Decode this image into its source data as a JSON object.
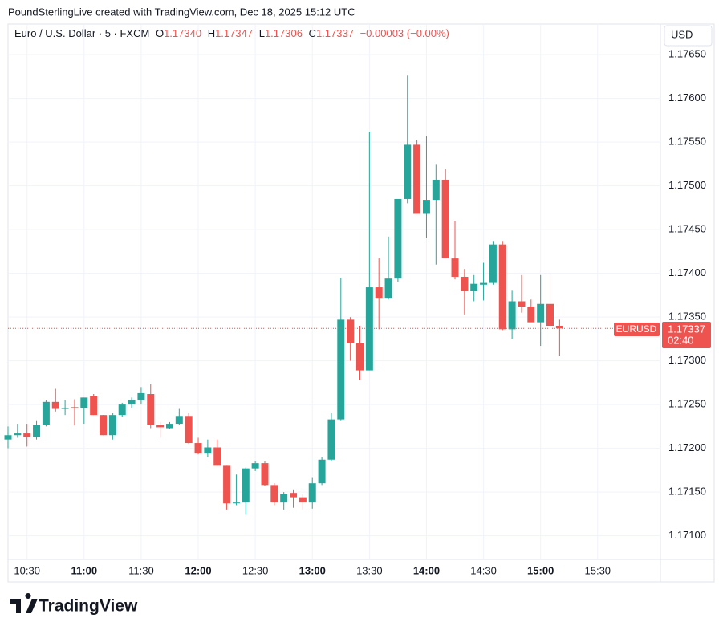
{
  "header": {
    "credit": "PoundSterlingLive created with TradingView.com, Dec 18, 2025 15:12 UTC"
  },
  "legend": {
    "symbol": "Euro / U.S. Dollar · 5 · FXCM",
    "o_label": "O",
    "o": "1.17340",
    "h_label": "H",
    "h": "1.17347",
    "l_label": "L",
    "l": "1.17306",
    "c_label": "C",
    "c": "1.17337",
    "change": "−0.00003 (−0.00%)"
  },
  "currency": "USD",
  "price_tag": {
    "symbol": "EURUSD",
    "price": "1.17337",
    "countdown": "02:40"
  },
  "logo": "TradingView",
  "chart_data": {
    "type": "candlestick",
    "up_color": "#26a69a",
    "down_color": "#ef5350",
    "grid": true,
    "x": [
      "10:20",
      "10:25",
      "10:30",
      "10:35",
      "10:40",
      "10:45",
      "10:50",
      "10:55",
      "11:00",
      "11:05",
      "11:10",
      "11:15",
      "11:20",
      "11:25",
      "11:30",
      "11:35",
      "11:40",
      "11:45",
      "11:50",
      "11:55",
      "12:00",
      "12:05",
      "12:10",
      "12:15",
      "12:20",
      "12:25",
      "12:30",
      "12:35",
      "12:40",
      "12:45",
      "12:50",
      "12:55",
      "13:00",
      "13:05",
      "13:10",
      "13:15",
      "13:20",
      "13:25",
      "13:30",
      "13:35",
      "13:40",
      "13:45",
      "13:50",
      "13:55",
      "14:00",
      "14:05",
      "14:10",
      "14:15",
      "14:20",
      "14:25",
      "14:30",
      "14:35",
      "14:40",
      "14:45",
      "14:50",
      "14:55",
      "15:00",
      "15:05",
      "15:10"
    ],
    "open": [
      1.1721,
      1.17215,
      1.17217,
      1.17213,
      1.17227,
      1.17253,
      1.17245,
      1.17247,
      1.17246,
      1.1726,
      1.17238,
      1.17215,
      1.17238,
      1.1725,
      1.17255,
      1.17262,
      1.17227,
      1.17223,
      1.17228,
      1.17237,
      1.17206,
      1.17194,
      1.17201,
      1.1718,
      1.17137,
      1.17138,
      1.17177,
      1.17183,
      1.17158,
      1.17138,
      1.17149,
      1.17144,
      1.17138,
      1.1716,
      1.17187,
      1.17233,
      1.17347,
      1.1732,
      1.17289,
      1.17384,
      1.17372,
      1.17394,
      1.17485,
      1.17547,
      1.17468,
      1.17484,
      1.17507,
      1.17417,
      1.17396,
      1.1738,
      1.17387,
      1.17389,
      1.17433,
      1.17336,
      1.17368,
      1.17362,
      1.17344,
      1.17365,
      1.1734
    ],
    "high": [
      1.17225,
      1.17228,
      1.17228,
      1.17232,
      1.17255,
      1.17268,
      1.17255,
      1.17256,
      1.17258,
      1.17262,
      1.17238,
      1.1724,
      1.17252,
      1.17258,
      1.1727,
      1.17273,
      1.1723,
      1.1723,
      1.17245,
      1.1724,
      1.17212,
      1.1721,
      1.1721,
      1.1718,
      1.1717,
      1.17178,
      1.17185,
      1.17185,
      1.1716,
      1.1715,
      1.17153,
      1.17148,
      1.17167,
      1.1719,
      1.1724,
      1.17395,
      1.1735,
      1.1734,
      1.17562,
      1.17417,
      1.17442,
      1.17485,
      1.17626,
      1.17552,
      1.17557,
      1.17525,
      1.17519,
      1.1746,
      1.17405,
      1.17398,
      1.17412,
      1.17437,
      1.17437,
      1.17381,
      1.17398,
      1.1737,
      1.17398,
      1.174,
      1.17347
    ],
    "low": [
      1.172,
      1.17212,
      1.17202,
      1.1721,
      1.17225,
      1.17242,
      1.17238,
      1.17226,
      1.17228,
      1.17238,
      1.17215,
      1.1721,
      1.17236,
      1.17246,
      1.1725,
      1.17223,
      1.17212,
      1.17222,
      1.17227,
      1.17205,
      1.17193,
      1.1719,
      1.1718,
      1.1713,
      1.17135,
      1.17124,
      1.17174,
      1.17157,
      1.17135,
      1.1713,
      1.17132,
      1.1713,
      1.17131,
      1.17158,
      1.17185,
      1.17232,
      1.173,
      1.17278,
      1.17289,
      1.17336,
      1.1737,
      1.1739,
      1.1748,
      1.17468,
      1.1744,
      1.1741,
      1.17417,
      1.17393,
      1.17353,
      1.17368,
      1.17369,
      1.17387,
      1.17335,
      1.17325,
      1.17355,
      1.17345,
      1.17317,
      1.17338,
      1.17306
    ],
    "close": [
      1.17215,
      1.17217,
      1.17213,
      1.17227,
      1.17253,
      1.17245,
      1.17246,
      1.17246,
      1.17258,
      1.17238,
      1.17215,
      1.17238,
      1.1725,
      1.17255,
      1.17263,
      1.17227,
      1.17224,
      1.17228,
      1.17237,
      1.17206,
      1.17194,
      1.17201,
      1.1718,
      1.17137,
      1.17138,
      1.17177,
      1.17183,
      1.17158,
      1.17138,
      1.17148,
      1.17144,
      1.17138,
      1.1716,
      1.17187,
      1.17233,
      1.17347,
      1.1732,
      1.17289,
      1.17384,
      1.17372,
      1.17394,
      1.17485,
      1.17547,
      1.17468,
      1.17484,
      1.17507,
      1.17417,
      1.17396,
      1.1738,
      1.17388,
      1.17389,
      1.17433,
      1.17336,
      1.17368,
      1.17362,
      1.17344,
      1.17365,
      1.1734,
      1.17337
    ],
    "last_price": 1.17337,
    "xlim": [
      "10:20",
      "16:03"
    ],
    "xticks": [
      "10:30",
      "11:00",
      "11:30",
      "12:00",
      "12:30",
      "13:00",
      "13:30",
      "14:00",
      "14:30",
      "15:00",
      "15:30"
    ],
    "ylim": [
      1.17073,
      1.17685
    ],
    "yticks": [
      {
        "value": 1.171,
        "label": "1.17100"
      },
      {
        "value": 1.1715,
        "label": "1.17150"
      },
      {
        "value": 1.172,
        "label": "1.17200"
      },
      {
        "value": 1.1725,
        "label": "1.17250"
      },
      {
        "value": 1.173,
        "label": "1.17300"
      },
      {
        "value": 1.1735,
        "label": "1.17350"
      },
      {
        "value": 1.174,
        "label": "1.17400"
      },
      {
        "value": 1.1745,
        "label": "1.17450"
      },
      {
        "value": 1.175,
        "label": "1.17500"
      },
      {
        "value": 1.1755,
        "label": "1.17550"
      },
      {
        "value": 1.176,
        "label": "1.17600"
      },
      {
        "value": 1.1765,
        "label": "1.17650"
      }
    ]
  }
}
